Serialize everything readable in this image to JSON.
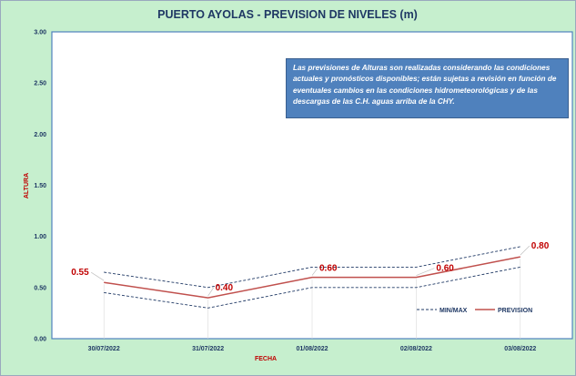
{
  "colors": {
    "background": "#c6efce",
    "plot_area": "#ffffff",
    "title": "#1f3864",
    "prevision_line": "#c0504d",
    "minmax_line": "#1f3864",
    "note_box": "#4f81bd",
    "axis_title": "#c00000"
  },
  "note": "Las previsiones de Alturas son realizadas considerando las condiciones actuales y pronósticos disponibles; están sujetas a revisión en función de eventuales cambios en las condiciones hidrometeorológicas y de las descargas de las C.H. aguas arriba de la CHY.",
  "chart_data": {
    "type": "line",
    "title": "PUERTO AYOLAS - PREVISION DE NIVELES (m)",
    "xlabel": "FECHA",
    "ylabel": "ALTURA",
    "categories": [
      "30/07/2022",
      "31/07/2022",
      "01/08/2022",
      "02/08/2022",
      "03/08/2022"
    ],
    "ylim": [
      0,
      3
    ],
    "yticks": [
      "0.00",
      "0.50",
      "1.00",
      "1.50",
      "2.00",
      "2.50",
      "3.00"
    ],
    "grid": false,
    "legend_position": "bottom-right",
    "series": [
      {
        "name": "PREVISION",
        "values": [
          0.55,
          0.4,
          0.6,
          0.6,
          0.8
        ],
        "labels": [
          "0.55",
          "0.40",
          "0.60",
          "0.60",
          "0.80"
        ],
        "style": "solid",
        "color": "#c0504d"
      },
      {
        "name": "MIN/MAX",
        "values": [
          0.45,
          0.3,
          0.5,
          0.5,
          0.7
        ],
        "style": "dashed",
        "color": "#1f3864",
        "part": "min"
      },
      {
        "name": "MIN/MAX",
        "values": [
          0.65,
          0.5,
          0.7,
          0.7,
          0.9
        ],
        "style": "dashed",
        "color": "#1f3864",
        "part": "max"
      }
    ]
  }
}
